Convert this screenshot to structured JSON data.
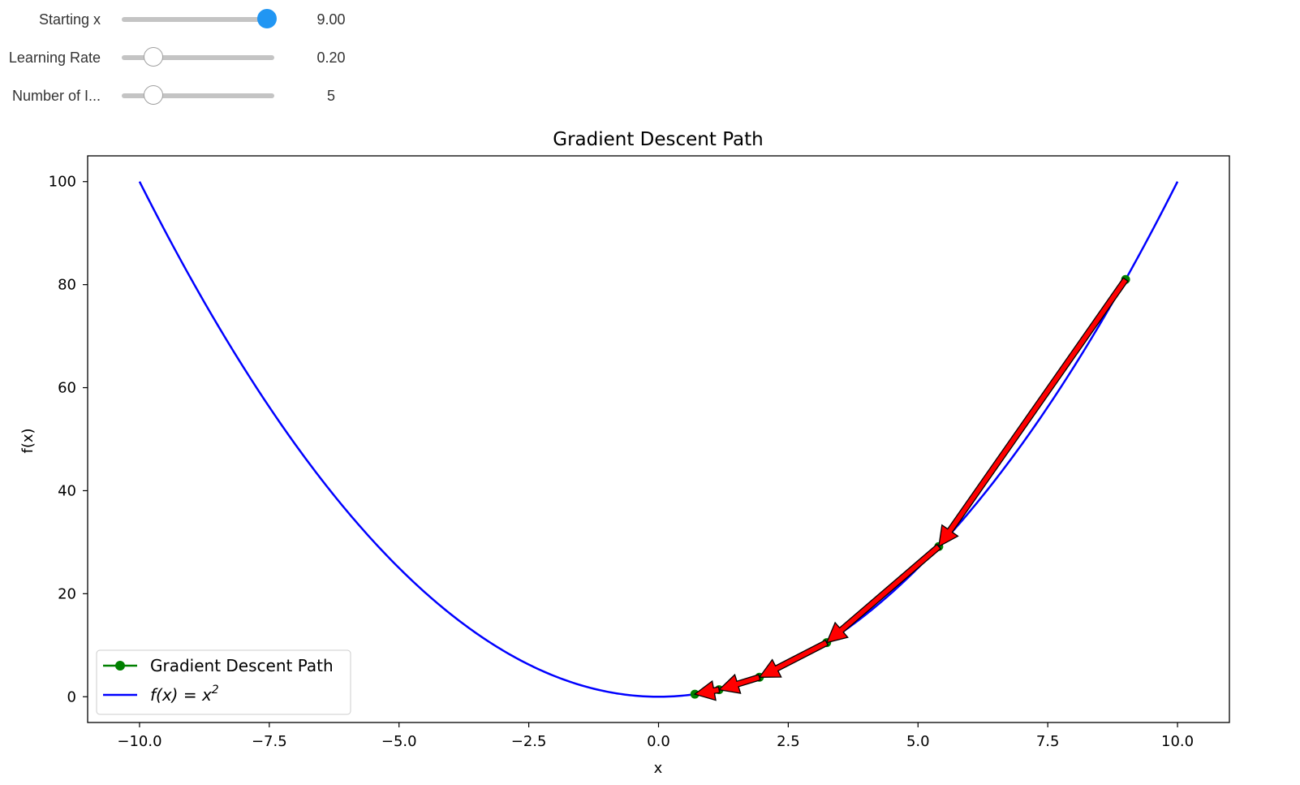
{
  "controls": {
    "sliders": [
      {
        "label": "Starting x",
        "value_text": "9.00",
        "fraction": 0.95,
        "active": true
      },
      {
        "label": "Learning Rate",
        "value_text": "0.20",
        "fraction": 0.21,
        "active": false
      },
      {
        "label": "Number of I...",
        "value_text": "5",
        "fraction": 0.21,
        "active": false
      }
    ]
  },
  "chart_data": {
    "type": "line",
    "title": "Gradient Descent Path",
    "xlabel": "x",
    "ylabel": "f(x)",
    "xlim": [
      -11,
      11
    ],
    "ylim": [
      -5,
      105
    ],
    "xticks": [
      -10.0,
      -7.5,
      -5.0,
      -2.5,
      0.0,
      2.5,
      5.0,
      7.5,
      10.0
    ],
    "xtick_labels": [
      "−10.0",
      "−7.5",
      "−5.0",
      "−2.5",
      "0.0",
      "2.5",
      "5.0",
      "7.5",
      "10.0"
    ],
    "yticks": [
      0,
      20,
      40,
      60,
      80,
      100
    ],
    "ytick_labels": [
      "0",
      "20",
      "40",
      "60",
      "80",
      "100"
    ],
    "grid": false,
    "legend_position": "lower-left",
    "curve": {
      "function": "x^2",
      "x_range": [
        -10,
        10
      ],
      "color": "#0000ff"
    },
    "series": [
      {
        "name": "Gradient Descent Path",
        "color": "#008000",
        "x": [
          9.0,
          5.4,
          3.24,
          1.944,
          1.1664,
          0.69984
        ],
        "y": [
          81.0,
          29.16,
          10.4976,
          3.779136,
          1.36048896,
          0.4897760256
        ]
      }
    ],
    "arrows": {
      "fill": "#ff0000",
      "edge": "#000000"
    },
    "legend": [
      {
        "label": "Gradient Descent Path",
        "kind": "line-marker",
        "color": "#008000"
      },
      {
        "label_main": "f(x) = x",
        "label_sup": "2",
        "kind": "line",
        "color": "#0000ff"
      }
    ]
  }
}
